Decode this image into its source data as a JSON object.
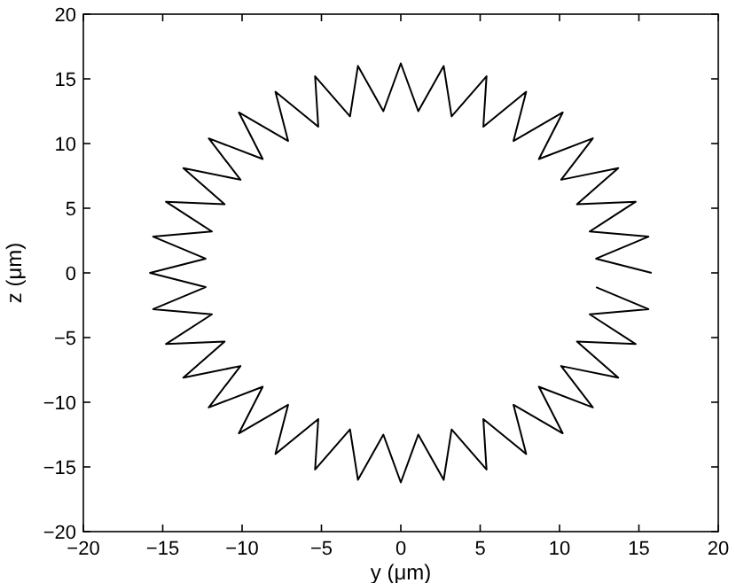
{
  "chart_data": {
    "type": "line",
    "xlabel": "y  (μm)",
    "ylabel": "z  (μm)",
    "xlim": [
      -20,
      20
    ],
    "ylim": [
      -20,
      20
    ],
    "xticks": [
      -20,
      -15,
      -10,
      -5,
      0,
      5,
      10,
      15,
      20
    ],
    "yticks": [
      -20,
      -15,
      -10,
      -5,
      0,
      5,
      10,
      15,
      20
    ],
    "grid": false,
    "marker": "none",
    "line_style": "solid",
    "x": [
      15.8,
      12.3,
      15.6,
      11.9,
      14.8,
      11.1,
      13.7,
      10.1,
      12.1,
      8.7,
      10.2,
      7.1,
      7.9,
      5.2,
      5.4,
      3.2,
      2.7,
      1.1,
      0,
      -1.1,
      -2.7,
      -3.2,
      -5.4,
      -5.2,
      -7.9,
      -7.1,
      -10.2,
      -8.7,
      -12.1,
      -10.1,
      -13.7,
      -11.1,
      -14.8,
      -11.9,
      -15.6,
      -12.3,
      -15.8,
      -12.3,
      -15.6,
      -11.9,
      -14.8,
      -11.1,
      -13.7,
      -10.1,
      -12.1,
      -8.7,
      -10.2,
      -7.1,
      -7.9,
      -5.2,
      -5.4,
      -3.2,
      -2.7,
      -1.1,
      0,
      1.1,
      2.7,
      3.2,
      5.4,
      5.2,
      7.9,
      7.1,
      10.2,
      8.7,
      12.1,
      10.1,
      13.7,
      11.1,
      14.8,
      11.9,
      15.6,
      12.3
    ],
    "series": [
      {
        "color": "#000000",
        "values": [
          0,
          1.1,
          2.8,
          3.2,
          5.5,
          5.3,
          8.1,
          7.2,
          10.4,
          8.8,
          12.4,
          10.2,
          14.0,
          11.3,
          15.2,
          12.1,
          16.0,
          12.5,
          16.2,
          12.5,
          16.0,
          12.1,
          15.2,
          11.3,
          14.0,
          10.2,
          12.4,
          8.8,
          10.4,
          7.2,
          8.1,
          5.3,
          5.5,
          3.2,
          2.8,
          1.1,
          0,
          -1.1,
          -2.8,
          -3.2,
          -5.5,
          -5.3,
          -8.1,
          -7.2,
          -10.4,
          -8.8,
          -12.4,
          -10.2,
          -14.0,
          -11.3,
          -15.2,
          -12.1,
          -16.0,
          -12.5,
          -16.2,
          -12.5,
          -16.0,
          -12.1,
          -15.2,
          -11.3,
          -14.0,
          -10.2,
          -12.4,
          -8.8,
          -10.4,
          -7.2,
          -8.1,
          -5.3,
          -5.5,
          -3.2,
          -2.8,
          -1.1
        ]
      }
    ]
  }
}
